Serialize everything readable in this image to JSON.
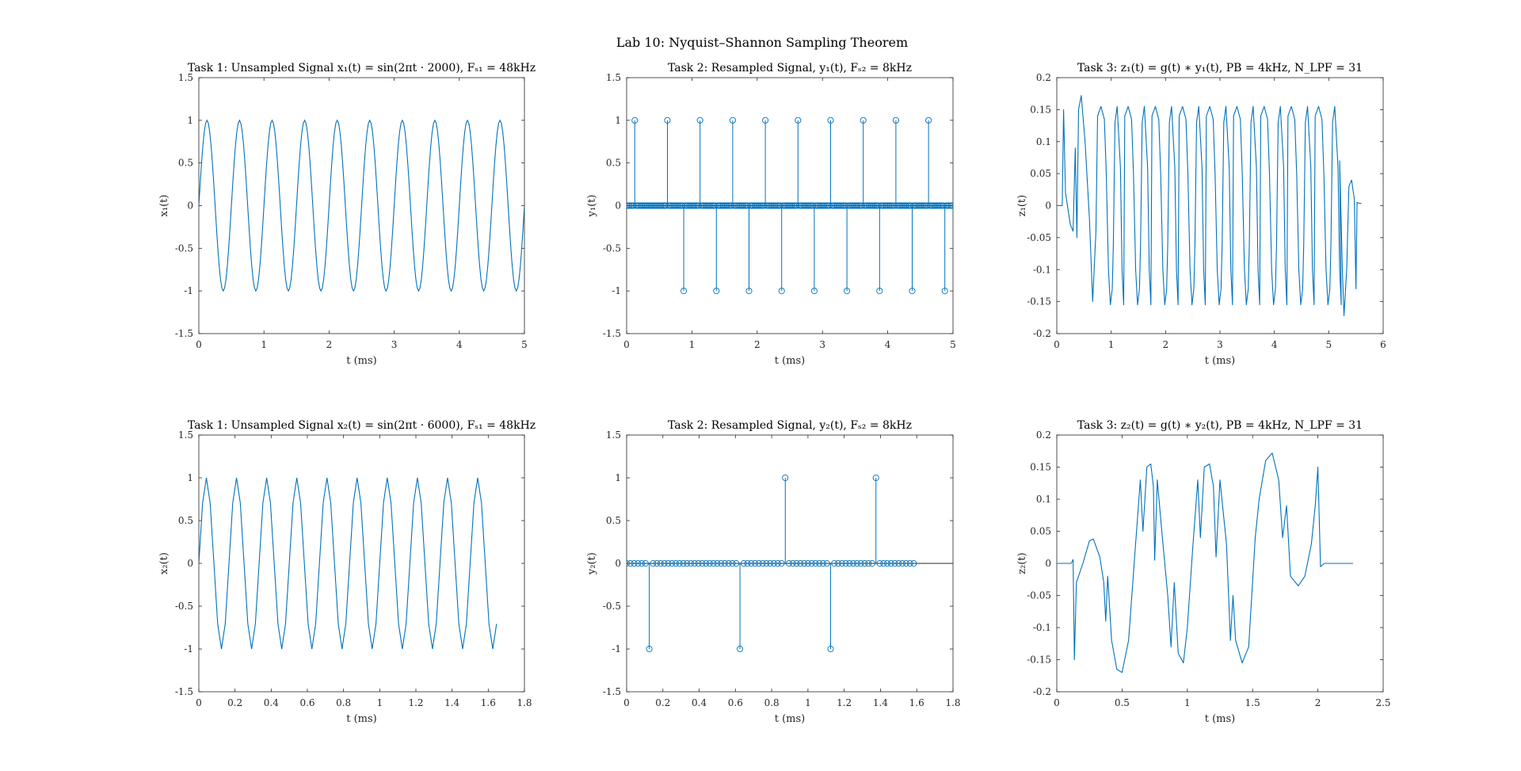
{
  "figure": {
    "suptitle": "Lab 10: Nyquist–Shannon Sampling Theorem",
    "line_color": "#0072BD",
    "axis_color": "#262626",
    "baseline_color": "#262626"
  },
  "chart_data": [
    {
      "type": "line",
      "title": "Task 1: Unsampled Signal x₁(t) = sin(2πt · 2000), Fₛ₁ = 48kHz",
      "xlabel": "t (ms)",
      "ylabel": "x₁(t)",
      "xlim": [
        0,
        5
      ],
      "ylim": [
        -1.5,
        1.5
      ],
      "xticks": [
        0,
        1,
        2,
        3,
        4,
        5
      ],
      "yticks": [
        -1.5,
        -1,
        -0.5,
        0,
        0.5,
        1,
        1.5
      ],
      "signal": {
        "frequency_khz": 2,
        "fs_khz": 48,
        "t_end_ms": 5,
        "amplitude": 1
      }
    },
    {
      "type": "stem",
      "title": "Task 2: Resampled Signal, y₁(t), Fₛ₂ = 8kHz",
      "xlabel": "t (ms)",
      "ylabel": "y₁(t)",
      "xlim": [
        0,
        5
      ],
      "ylim": [
        -1.5,
        1.5
      ],
      "xticks": [
        0,
        1,
        2,
        3,
        4,
        5
      ],
      "yticks": [
        -1.5,
        -1,
        -0.5,
        0,
        0.5,
        1,
        1.5
      ],
      "stems": {
        "step_ms": 0.0208333,
        "t_end_ms": 4.9792,
        "positive_start_ms": 0.125,
        "negative_start_ms": 0.375,
        "period_ms": 0.5
      }
    },
    {
      "type": "line",
      "title": "Task 3: z₁(t) = g(t) ∗ y₁(t), PB = 4kHz, N_LPF = 31",
      "xlabel": "t (ms)",
      "ylabel": "z₁(t)",
      "xlim": [
        0,
        6
      ],
      "ylim": [
        -0.2,
        0.2
      ],
      "xticks": [
        0,
        1,
        2,
        3,
        4,
        5,
        6
      ],
      "yticks": [
        -0.2,
        -0.15,
        -0.1,
        -0.05,
        0,
        0.05,
        0.1,
        0.15,
        0.2
      ],
      "signal": {
        "frequency_khz": 2,
        "t_start_ms": 0.125,
        "t_end_ms": 5.6,
        "peak": 0.155,
        "envelope_peak": 0.172
      }
    },
    {
      "type": "line",
      "title": "Task 1: Unsampled Signal x₂(t) = sin(2πt · 6000), Fₛ₁ = 48kHz",
      "xlabel": "t (ms)",
      "ylabel": "x₂(t)",
      "xlim": [
        0,
        1.8
      ],
      "ylim": [
        -1.5,
        1.5
      ],
      "xticks": [
        0,
        0.2,
        0.4,
        0.6,
        0.8,
        1,
        1.2,
        1.4,
        1.6,
        1.8
      ],
      "yticks": [
        -1.5,
        -1,
        -0.5,
        0,
        0.5,
        1,
        1.5
      ],
      "signal": {
        "frequency_khz": 6,
        "fs_khz": 48,
        "t_end_ms": 1.646,
        "amplitude": 1
      }
    },
    {
      "type": "stem",
      "title": "Task 2: Resampled Signal, y₂(t), Fₛ₂ = 8kHz",
      "xlabel": "t (ms)",
      "ylabel": "y₂(t)",
      "xlim": [
        0,
        1.8
      ],
      "ylim": [
        -1.5,
        1.5
      ],
      "xticks": [
        0,
        0.2,
        0.4,
        0.6,
        0.8,
        1,
        1.2,
        1.4,
        1.6,
        1.8
      ],
      "yticks": [
        -1.5,
        -1,
        -0.5,
        0,
        0.5,
        1,
        1.5
      ],
      "stems": {
        "step_ms": 0.0208333,
        "t_end_ms": 1.604,
        "positive_start_ms": 0.375,
        "negative_start_ms": 0.125,
        "period_ms": 0.5
      }
    },
    {
      "type": "line",
      "title": "Task 3: z₂(t) = g(t) ∗ y₂(t), PB = 4kHz, N_LPF = 31",
      "xlabel": "t (ms)",
      "ylabel": "z₂(t)",
      "xlim": [
        0,
        2.5
      ],
      "ylim": [
        -0.2,
        0.2
      ],
      "xticks": [
        0,
        0.5,
        1,
        1.5,
        2,
        2.5
      ],
      "yticks": [
        -0.2,
        -0.15,
        -0.1,
        -0.05,
        0,
        0.05,
        0.1,
        0.15,
        0.2
      ],
      "signal": {
        "t_start_ms": 0.125,
        "t_end_ms": 2.27
      }
    }
  ]
}
